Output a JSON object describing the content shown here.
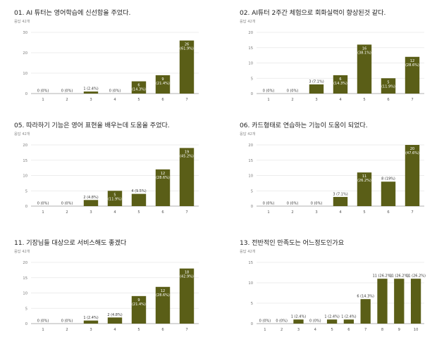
{
  "colors": {
    "bar": "#5a5e17",
    "grid": "#e6e6e6",
    "axis": "#999999"
  },
  "chart_data": [
    {
      "type": "bar",
      "title": "01. AI 튜터는 영어학습에 신선함을 주었다.",
      "subtitle": "응답 42개",
      "categories": [
        "1",
        "2",
        "3",
        "4",
        "5",
        "6",
        "7"
      ],
      "values": [
        0,
        0,
        1,
        0,
        6,
        9,
        26
      ],
      "data_labels": [
        [
          "0 (0%)"
        ],
        [
          "0 (0%)"
        ],
        [
          "1 (2.4%)"
        ],
        [
          "0 (0%)"
        ],
        [
          "6",
          "(14.3%)"
        ],
        [
          "9",
          "(21.4%)"
        ],
        [
          "26",
          "(61.9%)"
        ]
      ],
      "ylim": [
        0,
        30
      ],
      "yticks": [
        0,
        10,
        20,
        30
      ],
      "grid": true
    },
    {
      "type": "bar",
      "title": "02. AI튜터 2주간 체험으로 회화실력이 향상된것 같다.",
      "subtitle": "응답 42개",
      "categories": [
        "1",
        "2",
        "3",
        "4",
        "5",
        "6",
        "7"
      ],
      "values": [
        0,
        0,
        3,
        6,
        16,
        5,
        12
      ],
      "data_labels": [
        [
          "0 (0%)"
        ],
        [
          "0 (0%)"
        ],
        [
          "3 (7.1%)"
        ],
        [
          "6",
          "(14.3%)"
        ],
        [
          "16",
          "(38.1%)"
        ],
        [
          "5",
          "(11.9%)"
        ],
        [
          "12",
          "(28.6%)"
        ]
      ],
      "ylim": [
        0,
        20
      ],
      "yticks": [
        0,
        5,
        10,
        15,
        20
      ],
      "grid": true
    },
    {
      "type": "bar",
      "title": "05. 따라하기 기능은 영어 표현을 배우는데 도움을 주었다.",
      "subtitle": "응답 42개",
      "categories": [
        "1",
        "2",
        "3",
        "4",
        "5",
        "6",
        "7"
      ],
      "values": [
        0,
        0,
        2,
        5,
        4,
        12,
        19
      ],
      "data_labels": [
        [
          "0 (0%)"
        ],
        [
          "0 (0%)"
        ],
        [
          "2 (4.8%)"
        ],
        [
          "5",
          "(11.9%)"
        ],
        [
          "4 (9.5%)"
        ],
        [
          "12",
          "(28.6%)"
        ],
        [
          "19",
          "(45.2%)"
        ]
      ],
      "ylim": [
        0,
        20
      ],
      "yticks": [
        0,
        5,
        10,
        15,
        20
      ],
      "grid": true
    },
    {
      "type": "bar",
      "title": "06. 카드형태로 연습하는 기능이 도움이 되었다.",
      "subtitle": "응답 42개",
      "categories": [
        "1",
        "2",
        "3",
        "4",
        "5",
        "6",
        "7"
      ],
      "values": [
        0,
        0,
        0,
        3,
        11,
        8,
        20
      ],
      "data_labels": [
        [
          "0 (0%)"
        ],
        [
          "0 (0%)"
        ],
        [
          "0 (0%)"
        ],
        [
          "3 (7.1%)"
        ],
        [
          "11",
          "(26.2%)"
        ],
        [
          "8 (19%)"
        ],
        [
          "20",
          "(47.6%)"
        ]
      ],
      "ylim": [
        0,
        20
      ],
      "yticks": [
        0,
        5,
        10,
        15,
        20
      ],
      "grid": true
    },
    {
      "type": "bar",
      "title": "11. 기장님들 대상으로 서비스해도 좋겠다",
      "subtitle": "응답 42개",
      "categories": [
        "1",
        "2",
        "3",
        "4",
        "5",
        "6",
        "7"
      ],
      "values": [
        0,
        0,
        1,
        2,
        9,
        12,
        18
      ],
      "data_labels": [
        [
          "0 (0%)"
        ],
        [
          "0 (0%)"
        ],
        [
          "1 (2.4%)"
        ],
        [
          "2 (4.8%)"
        ],
        [
          "9",
          "(21.4%)"
        ],
        [
          "12",
          "(28.6%)"
        ],
        [
          "18",
          "(42.9%)"
        ]
      ],
      "ylim": [
        0,
        20
      ],
      "yticks": [
        0,
        5,
        10,
        15,
        20
      ],
      "grid": true
    },
    {
      "type": "bar",
      "title": "13. 전반적인 만족도는 어느정도인가요",
      "subtitle": "응답 42개",
      "categories": [
        "1",
        "2",
        "3",
        "4",
        "5",
        "6",
        "7",
        "8",
        "9",
        "10"
      ],
      "values": [
        0,
        0,
        1,
        0,
        1,
        1,
        6,
        11,
        11,
        11
      ],
      "data_labels": [
        [
          "0 (0%)"
        ],
        [
          "0 (0%)"
        ],
        [
          "1 (2.4%)"
        ],
        [
          "0 (0%)"
        ],
        [
          "1 (2.4%)"
        ],
        [
          "1 (2.4%)"
        ],
        [
          "6 (14.3%)"
        ],
        [
          "11 (26.2%)"
        ],
        [
          "11 (26.2%)"
        ],
        [
          "11 (26.2%)"
        ]
      ],
      "ylim": [
        0,
        15
      ],
      "yticks": [
        0,
        5,
        10,
        15
      ],
      "grid": true
    }
  ]
}
